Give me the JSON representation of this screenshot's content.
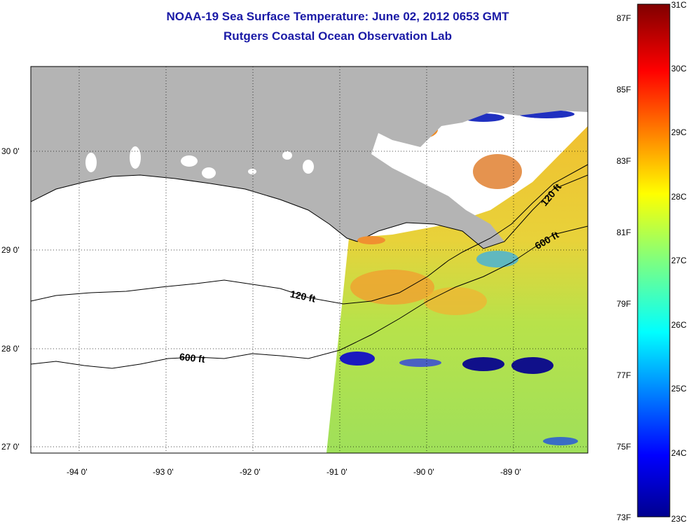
{
  "title": "NOAA-19 Sea Surface Temperature:  June 02, 2012 0653 GMT",
  "subtitle": "Rutgers Coastal Ocean Observation Lab",
  "map": {
    "lon_labels": [
      "-94 0'",
      "-93 0'",
      "-92 0'",
      "-91 0'",
      "-90 0'",
      "-89 0'"
    ],
    "lat_labels": [
      "30 0'",
      "29 0'",
      "28 0'",
      "27 0'"
    ],
    "contours": [
      {
        "label": "120 ft"
      },
      {
        "label": "120 ft"
      },
      {
        "label": "600 ft"
      },
      {
        "label": "600 ft"
      }
    ],
    "land_color": "#b4b4b4",
    "nodata_color": "#ffffff"
  },
  "colorbar": {
    "f_labels": [
      "87F",
      "85F",
      "83F",
      "81F",
      "79F",
      "77F",
      "75F",
      "73F"
    ],
    "c_labels": [
      "31C",
      "30C",
      "29C",
      "28C",
      "27C",
      "26C",
      "25C",
      "24C",
      "23C"
    ],
    "min_color": "#00008f",
    "max_color": "#800000"
  }
}
